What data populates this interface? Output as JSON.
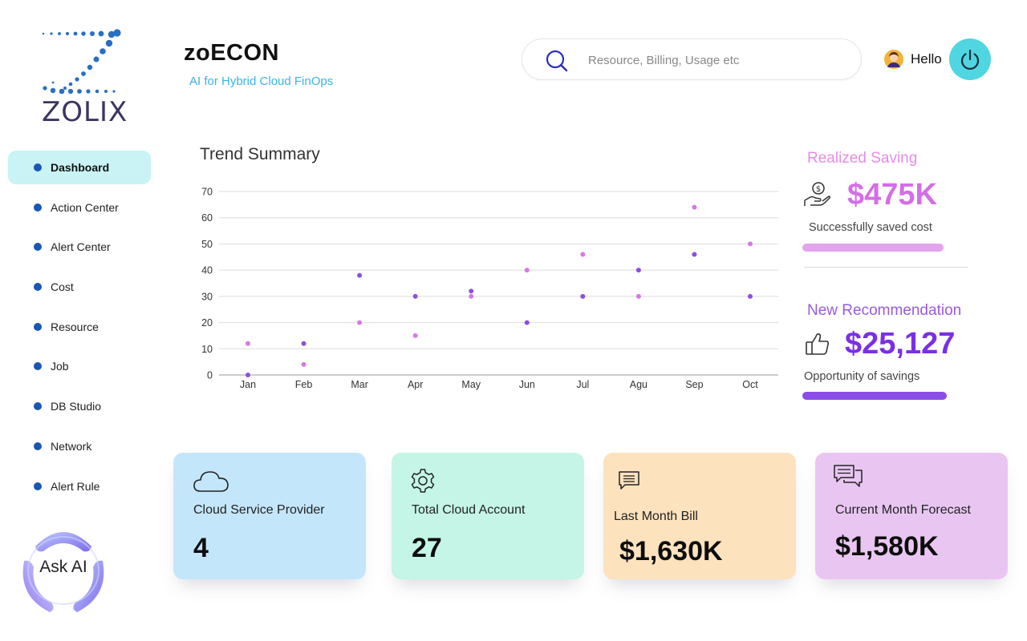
{
  "logo": {
    "text": "ZOLIX"
  },
  "brand": {
    "title": "zoECON",
    "subtitle": "AI for Hybrid Cloud FinOps"
  },
  "search": {
    "placeholder": "Resource, Billing, Usage etc",
    "icon": "search-icon"
  },
  "user": {
    "greeting": "Hello",
    "avatar_icon": "avatar",
    "power_icon": "power-icon"
  },
  "sidebar": {
    "items": [
      {
        "label": "Dashboard",
        "active": true
      },
      {
        "label": "Action Center"
      },
      {
        "label": "Alert Center"
      },
      {
        "label": "Cost"
      },
      {
        "label": "Resource"
      },
      {
        "label": "Job"
      },
      {
        "label": "DB Studio"
      },
      {
        "label": "Network"
      },
      {
        "label": "Alert Rule"
      }
    ]
  },
  "ask_ai": {
    "label": "Ask AI"
  },
  "trend": {
    "title": "Trend Summary"
  },
  "chart_data": {
    "type": "scatter",
    "title": "Trend Summary",
    "categories": [
      "Jan",
      "Feb",
      "Mar",
      "Apr",
      "May",
      "Jun",
      "Jul",
      "Agu",
      "Sep",
      "Oct"
    ],
    "yticks": [
      0,
      10,
      20,
      30,
      40,
      50,
      60,
      70
    ],
    "ylim": [
      0,
      70
    ],
    "grid": true,
    "series": [
      {
        "color": "#d679e6",
        "values": [
          12,
          4,
          20,
          15,
          30,
          40,
          46,
          30,
          64,
          50
        ]
      },
      {
        "color": "#8c4fe0",
        "values": [
          0,
          12,
          38,
          30,
          32,
          20,
          30,
          40,
          46,
          30
        ]
      }
    ]
  },
  "realized": {
    "title": "Realized Saving",
    "value": "$475K",
    "desc": "Successfully saved cost",
    "color": "#e68ce6",
    "value_color": "#d46ee6",
    "bar_color": "#e2a4ec",
    "icon": "hand-dollar-icon"
  },
  "recommendation": {
    "title": "New Recommendation",
    "value": "$25,127",
    "desc": "Opportunity of savings",
    "color": "#9a5ae0",
    "value_color": "#7a2fe6",
    "bar_color": "#8b4de8",
    "icon": "thumbs-up-icon"
  },
  "cards": [
    {
      "label": "Cloud Service Provider",
      "value": "4",
      "bg": "#c4e6fb",
      "icon": "cloud-icon"
    },
    {
      "label": "Total Cloud Account",
      "value": "27",
      "bg": "#c4f5e6",
      "icon": "gear-icon"
    },
    {
      "label": "Last Month Bill",
      "value": "$1,630K",
      "bg": "#fde2be",
      "icon": "message-icon"
    },
    {
      "label": "Current Month Forecast",
      "value": "$1,580K",
      "bg": "#e9c6f2",
      "icon": "chat-icon"
    }
  ]
}
